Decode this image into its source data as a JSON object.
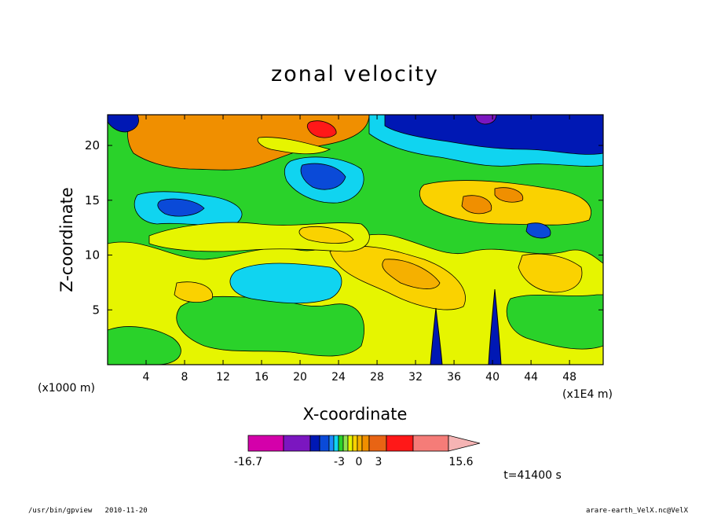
{
  "chart_data": {
    "type": "heatmap",
    "title": "zonal velocity",
    "xlabel": "X-coordinate",
    "ylabel": "Z-coordinate",
    "x_unit_note": "(x1E4 m)",
    "z_unit_note": "(x1000 m)",
    "xlim": [
      0,
      51.5
    ],
    "ylim": [
      0,
      22.8
    ],
    "x_ticks": [
      4,
      8,
      12,
      16,
      20,
      24,
      28,
      32,
      36,
      40,
      44,
      48
    ],
    "y_ticks": [
      5,
      10,
      15,
      20
    ],
    "colorbar": {
      "min_label": "-16.7",
      "max_label": "15.6",
      "inner_labels": [
        "-3",
        "0",
        "3"
      ],
      "colors": [
        "#d400aa",
        "#7b16c0",
        "#0018b4",
        "#0a4ad8",
        "#1e8cff",
        "#10d4f0",
        "#2ad22a",
        "#8ee24e",
        "#e6f500",
        "#fad200",
        "#f5b000",
        "#f08f00",
        "#e86414",
        "#ff1818",
        "#f57c78",
        "#f5b4b4"
      ]
    },
    "time_label": "t=41400 s",
    "grid": false
  },
  "footer": {
    "left": "/usr/bin/gpview   2010-11-20",
    "right": "arare-earth_VelX.nc@VelX"
  }
}
